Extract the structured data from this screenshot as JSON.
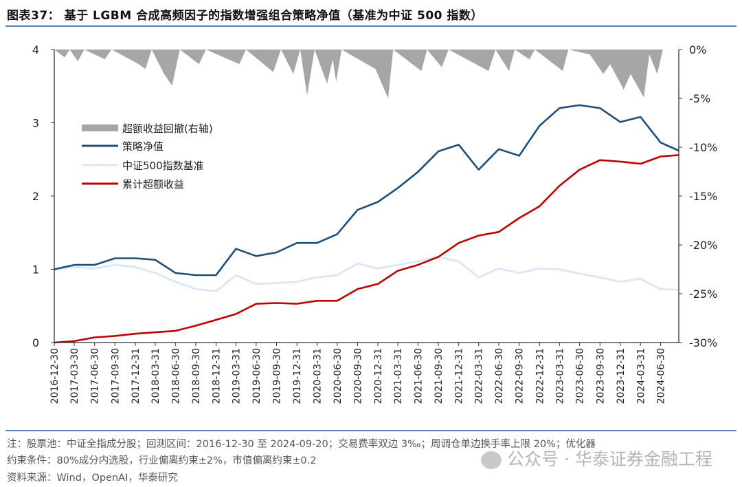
{
  "header": {
    "title": "图表37：  基于 LGBM 合成高频因子的指数增强组合策略净值（基准为中证 500 指数）"
  },
  "footer": {
    "note_line1": "注：股票池：中证全指成分股；回测区间：2016-12-30 至 2024-09-20；交易费率双边 3‰；周调仓单边换手率上限 20%；优化器",
    "note_line2": "约束条件：80%成分内选股，行业偏离约束±2%，市值偏离约束±0.2",
    "source": "资料来源：Wind，OpenAI，华泰研究",
    "watermark": "公众号 · 华泰证券金融工程"
  },
  "chart_data": {
    "type": "line",
    "title": "",
    "colors": {
      "strategy": "#1f4e79",
      "benchmark": "#dce9f5",
      "excess": "#c00000",
      "drawdown": "#a6a6a6"
    },
    "yaxis_left": {
      "range": [
        0,
        4
      ],
      "ticks": [
        "0",
        "1",
        "2",
        "3",
        "4"
      ]
    },
    "yaxis_right": {
      "range": [
        -30,
        0
      ],
      "unit": "%",
      "ticks": [
        "-30%",
        "-25%",
        "-20%",
        "-15%",
        "-10%",
        "-5%",
        "0%"
      ]
    },
    "x_range": [
      "2016-12-30",
      "2024-09-20"
    ],
    "x_ticks": [
      "2016-12-30",
      "2017-03-30",
      "2017-06-30",
      "2017-09-30",
      "2017-12-31",
      "2018-03-31",
      "2018-06-30",
      "2018-09-30",
      "2018-12-31",
      "2019-03-31",
      "2019-06-30",
      "2019-09-30",
      "2019-12-31",
      "2020-03-31",
      "2020-06-30",
      "2020-09-30",
      "2020-12-31",
      "2021-03-31",
      "2021-06-30",
      "2021-09-30",
      "2021-12-31",
      "2022-03-31",
      "2022-06-30",
      "2022-09-30",
      "2022-12-31",
      "2023-03-31",
      "2023-06-30",
      "2023-09-30",
      "2023-12-31",
      "2024-03-31",
      "2024-06-30"
    ],
    "legend": {
      "placement": "upper-left",
      "entries": [
        "超额收益回撤(右轴)",
        "策略净值",
        "中证500指数基准",
        "累计超额收益"
      ]
    },
    "dates": [
      "2016-12-30",
      "2017-03-31",
      "2017-06-30",
      "2017-09-30",
      "2017-12-31",
      "2018-03-31",
      "2018-06-30",
      "2018-09-30",
      "2018-12-31",
      "2019-03-31",
      "2019-06-30",
      "2019-09-30",
      "2019-12-31",
      "2020-03-31",
      "2020-06-30",
      "2020-09-30",
      "2020-12-31",
      "2021-03-31",
      "2021-06-30",
      "2021-09-30",
      "2021-12-31",
      "2022-03-31",
      "2022-06-30",
      "2022-09-30",
      "2022-12-31",
      "2023-03-31",
      "2023-06-30",
      "2023-09-30",
      "2023-12-31",
      "2024-03-31",
      "2024-06-30",
      "2024-09-20"
    ],
    "series": [
      {
        "name": "策略净值",
        "axis": "left",
        "values": [
          1.0,
          1.06,
          1.06,
          1.15,
          1.15,
          1.13,
          0.95,
          0.92,
          0.92,
          1.28,
          1.18,
          1.23,
          1.36,
          1.36,
          1.48,
          1.81,
          1.92,
          2.11,
          2.33,
          2.61,
          2.7,
          2.36,
          2.64,
          2.55,
          2.96,
          3.2,
          3.24,
          3.2,
          3.01,
          3.08,
          2.73,
          2.62
        ]
      },
      {
        "name": "中证500指数基准",
        "axis": "left",
        "values": [
          1.0,
          1.03,
          1.01,
          1.06,
          1.03,
          0.95,
          0.83,
          0.73,
          0.7,
          0.92,
          0.8,
          0.81,
          0.83,
          0.89,
          0.92,
          1.08,
          1.01,
          1.06,
          1.11,
          1.17,
          1.11,
          0.89,
          1.01,
          0.95,
          1.01,
          1.0,
          0.94,
          0.89,
          0.83,
          0.87,
          0.73,
          0.72
        ]
      },
      {
        "name": "累计超额收益",
        "axis": "left",
        "values": [
          0.0,
          0.02,
          0.07,
          0.09,
          0.12,
          0.14,
          0.16,
          0.23,
          0.31,
          0.39,
          0.53,
          0.54,
          0.53,
          0.57,
          0.57,
          0.73,
          0.8,
          0.98,
          1.06,
          1.17,
          1.36,
          1.46,
          1.51,
          1.7,
          1.86,
          2.14,
          2.36,
          2.49,
          2.47,
          2.44,
          2.54,
          2.56
        ]
      }
    ],
    "drawdown": {
      "name": "超额收益回撤(右轴)",
      "axis": "right",
      "type": "area",
      "points": [
        [
          "2016-12-30",
          0
        ],
        [
          "2017-02-15",
          -0.8
        ],
        [
          "2017-03-10",
          0
        ],
        [
          "2017-04-15",
          -1.2
        ],
        [
          "2017-05-15",
          0
        ],
        [
          "2017-08-15",
          -1.0
        ],
        [
          "2017-09-15",
          0
        ],
        [
          "2018-01-15",
          -1.5
        ],
        [
          "2018-02-15",
          -2.0
        ],
        [
          "2018-03-15",
          0
        ],
        [
          "2018-05-10",
          -2.5
        ],
        [
          "2018-06-15",
          -3.7
        ],
        [
          "2018-07-20",
          0
        ],
        [
          "2018-10-15",
          -1.5
        ],
        [
          "2018-11-15",
          0
        ],
        [
          "2019-04-15",
          -1.5
        ],
        [
          "2019-05-15",
          0
        ],
        [
          "2019-09-15",
          -2.3
        ],
        [
          "2019-10-20",
          0
        ],
        [
          "2019-12-15",
          -2.5
        ],
        [
          "2020-01-15",
          0
        ],
        [
          "2020-02-15",
          -4.7
        ],
        [
          "2020-03-20",
          0
        ],
        [
          "2020-05-15",
          -3.5
        ],
        [
          "2020-06-10",
          -1.0
        ],
        [
          "2020-06-25",
          -3.3
        ],
        [
          "2020-07-20",
          0
        ],
        [
          "2020-12-20",
          -2.0
        ],
        [
          "2021-02-15",
          -5.0
        ],
        [
          "2021-03-10",
          0
        ],
        [
          "2021-07-15",
          -2.2
        ],
        [
          "2021-08-10",
          0
        ],
        [
          "2021-10-15",
          -1.8
        ],
        [
          "2021-11-15",
          0
        ],
        [
          "2022-05-15",
          -2.2
        ],
        [
          "2022-06-15",
          0
        ],
        [
          "2022-08-15",
          -2.2
        ],
        [
          "2022-09-10",
          0
        ],
        [
          "2022-11-15",
          -1.0
        ],
        [
          "2022-12-10",
          0
        ],
        [
          "2023-04-15",
          -2.2
        ],
        [
          "2023-05-10",
          0
        ],
        [
          "2023-08-15",
          -0.5
        ],
        [
          "2023-10-15",
          -2.5
        ],
        [
          "2023-11-15",
          -1.5
        ],
        [
          "2024-01-15",
          -4.1
        ],
        [
          "2024-02-15",
          -2.5
        ],
        [
          "2024-04-15",
          -4.9
        ],
        [
          "2024-05-10",
          -0.5
        ],
        [
          "2024-06-15",
          -2.5
        ],
        [
          "2024-07-10",
          0
        ],
        [
          "2024-09-20",
          0
        ]
      ]
    }
  }
}
